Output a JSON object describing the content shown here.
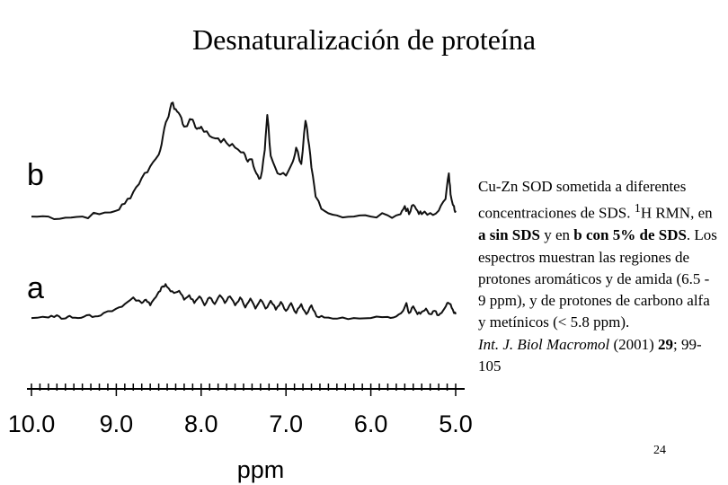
{
  "slide": {
    "title": "Desnaturalización de proteína",
    "number": "24"
  },
  "caption": {
    "intro": "Cu-Zn SOD sometida a diferentes concentraciones de SDS.",
    "sup": "1",
    "nmr": "H RMN, en",
    "a_label": "a sin SDS",
    "y": "y en",
    "b_label": "b con 5% de SDS",
    "body": ". Los espectros muestran las regiones de protones aromáticos y de amida (6.5 - 9 ppm), y de protones de carbono alfa y metínicos (< 5.8 ppm).",
    "journal": "Int. J. Biol Macromol",
    "year": "(2001)",
    "volume": "29",
    "pages": "; 99-105"
  },
  "chart_data": {
    "type": "line",
    "title": "",
    "xlabel": "ppm",
    "ylabel": "",
    "xlim": [
      10.0,
      5.0
    ],
    "x_reversed": true,
    "ticks": [
      "10.0",
      "9.0",
      "8.0",
      "7.0",
      "6.0",
      "5.0"
    ],
    "tick_values": [
      10.0,
      9.0,
      8.0,
      7.0,
      6.0,
      5.0
    ],
    "minor_tick_step": 0.1,
    "grid": false,
    "series": [
      {
        "name": "b",
        "description": "5% SDS",
        "points": [
          [
            10.0,
            0.03
          ],
          [
            9.8,
            0.03
          ],
          [
            9.6,
            0.02
          ],
          [
            9.4,
            0.03
          ],
          [
            9.2,
            0.05
          ],
          [
            9.0,
            0.08
          ],
          [
            8.9,
            0.14
          ],
          [
            8.8,
            0.24
          ],
          [
            8.7,
            0.36
          ],
          [
            8.6,
            0.46
          ],
          [
            8.5,
            0.56
          ],
          [
            8.45,
            0.72
          ],
          [
            8.4,
            0.86
          ],
          [
            8.35,
            1.0
          ],
          [
            8.3,
            0.95
          ],
          [
            8.25,
            0.9
          ],
          [
            8.2,
            0.8
          ],
          [
            8.1,
            0.86
          ],
          [
            8.05,
            0.78
          ],
          [
            8.0,
            0.8
          ],
          [
            7.9,
            0.72
          ],
          [
            7.8,
            0.7
          ],
          [
            7.7,
            0.66
          ],
          [
            7.6,
            0.62
          ],
          [
            7.5,
            0.58
          ],
          [
            7.45,
            0.5
          ],
          [
            7.4,
            0.52
          ],
          [
            7.35,
            0.4
          ],
          [
            7.3,
            0.36
          ],
          [
            7.25,
            0.6
          ],
          [
            7.22,
            0.9
          ],
          [
            7.18,
            0.55
          ],
          [
            7.1,
            0.4
          ],
          [
            7.0,
            0.38
          ],
          [
            6.92,
            0.5
          ],
          [
            6.88,
            0.62
          ],
          [
            6.82,
            0.48
          ],
          [
            6.77,
            0.85
          ],
          [
            6.74,
            0.7
          ],
          [
            6.7,
            0.45
          ],
          [
            6.65,
            0.2
          ],
          [
            6.55,
            0.08
          ],
          [
            6.4,
            0.04
          ],
          [
            6.2,
            0.03
          ],
          [
            6.0,
            0.03
          ],
          [
            5.8,
            0.04
          ],
          [
            5.65,
            0.05
          ],
          [
            5.6,
            0.12
          ],
          [
            5.55,
            0.05
          ],
          [
            5.5,
            0.13
          ],
          [
            5.45,
            0.08
          ],
          [
            5.4,
            0.05
          ],
          [
            5.3,
            0.06
          ],
          [
            5.2,
            0.08
          ],
          [
            5.12,
            0.18
          ],
          [
            5.08,
            0.4
          ],
          [
            5.06,
            0.22
          ],
          [
            5.02,
            0.12
          ],
          [
            5.0,
            0.08
          ]
        ]
      },
      {
        "name": "a",
        "description": "sin SDS",
        "points": [
          [
            10.0,
            0.03
          ],
          [
            9.8,
            0.04
          ],
          [
            9.7,
            0.08
          ],
          [
            9.62,
            0.02
          ],
          [
            9.55,
            0.07
          ],
          [
            9.45,
            0.03
          ],
          [
            9.35,
            0.08
          ],
          [
            9.25,
            0.06
          ],
          [
            9.15,
            0.12
          ],
          [
            9.0,
            0.2
          ],
          [
            8.9,
            0.28
          ],
          [
            8.8,
            0.4
          ],
          [
            8.7,
            0.3
          ],
          [
            8.65,
            0.36
          ],
          [
            8.6,
            0.26
          ],
          [
            8.55,
            0.38
          ],
          [
            8.5,
            0.5
          ],
          [
            8.45,
            0.6
          ],
          [
            8.42,
            0.64
          ],
          [
            8.38,
            0.56
          ],
          [
            8.32,
            0.48
          ],
          [
            8.26,
            0.52
          ],
          [
            8.2,
            0.36
          ],
          [
            8.14,
            0.44
          ],
          [
            8.08,
            0.3
          ],
          [
            8.02,
            0.42
          ],
          [
            7.96,
            0.26
          ],
          [
            7.9,
            0.4
          ],
          [
            7.84,
            0.28
          ],
          [
            7.78,
            0.44
          ],
          [
            7.72,
            0.3
          ],
          [
            7.66,
            0.42
          ],
          [
            7.6,
            0.26
          ],
          [
            7.54,
            0.4
          ],
          [
            7.48,
            0.22
          ],
          [
            7.42,
            0.38
          ],
          [
            7.36,
            0.2
          ],
          [
            7.3,
            0.36
          ],
          [
            7.24,
            0.2
          ],
          [
            7.18,
            0.34
          ],
          [
            7.12,
            0.18
          ],
          [
            7.06,
            0.32
          ],
          [
            7.0,
            0.16
          ],
          [
            6.94,
            0.3
          ],
          [
            6.88,
            0.12
          ],
          [
            6.82,
            0.28
          ],
          [
            6.76,
            0.1
          ],
          [
            6.7,
            0.26
          ],
          [
            6.64,
            0.06
          ],
          [
            6.55,
            0.04
          ],
          [
            6.4,
            0.02
          ],
          [
            6.2,
            0.03
          ],
          [
            6.0,
            0.03
          ],
          [
            5.8,
            0.05
          ],
          [
            5.7,
            0.06
          ],
          [
            5.62,
            0.16
          ],
          [
            5.58,
            0.3
          ],
          [
            5.55,
            0.12
          ],
          [
            5.5,
            0.24
          ],
          [
            5.45,
            0.1
          ],
          [
            5.4,
            0.14
          ],
          [
            5.35,
            0.2
          ],
          [
            5.3,
            0.1
          ],
          [
            5.25,
            0.16
          ],
          [
            5.2,
            0.08
          ],
          [
            5.15,
            0.16
          ],
          [
            5.1,
            0.3
          ],
          [
            5.06,
            0.28
          ],
          [
            5.02,
            0.12
          ],
          [
            5.0,
            0.1
          ]
        ]
      }
    ]
  }
}
